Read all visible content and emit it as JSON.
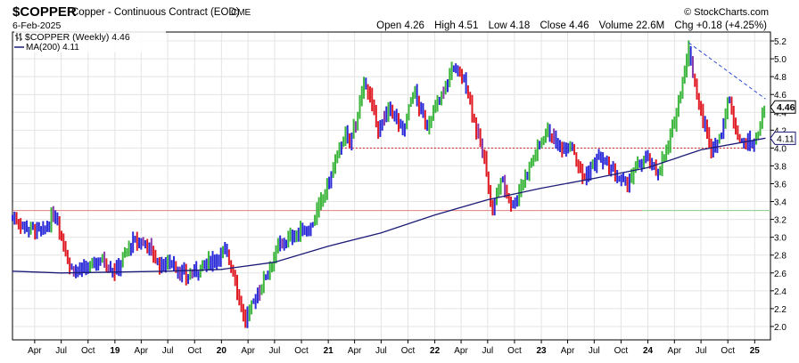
{
  "header": {
    "symbol": "$COPPER",
    "full_name": "Copper - Continuous Contract (EOD)",
    "exchange": "CME",
    "date": "6-Feb-2025",
    "attribution": "© StockCharts.com",
    "open_label": "Open",
    "open_value": "4.26",
    "high_label": "High",
    "high_value": "4.51",
    "low_label": "Low",
    "low_value": "4.18",
    "close_label": "Close",
    "close_value": "4.46",
    "volume_label": "Volume",
    "volume_value": "22.6M",
    "chg_label": "Chg",
    "chg_value": "+0.18 (+4.25%)"
  },
  "legend": {
    "series_label": "$COPPER (Weekly) 4.46",
    "ma_label": "MA(200) 4.11"
  },
  "badges": {
    "last_price": "4.46",
    "ma_value": "4.11"
  },
  "colors": {
    "up": "#3cb63c",
    "down": "#e01b24",
    "flat": "#2b2bd9",
    "other": "#8a3aa8",
    "ma": "#1a1a78",
    "resistance": "#2e4bd6",
    "support": "#c01818",
    "horizontal_line": "#8ac98a",
    "horizontal_line_red": "#e08080"
  },
  "chart_data": {
    "type": "bar",
    "title": "$COPPER (Weekly)",
    "xlabel": "",
    "ylabel": "",
    "ylim": [
      1.85,
      5.3
    ],
    "y_ticks": [
      "2.0",
      "2.2",
      "2.4",
      "2.6",
      "2.8",
      "3.0",
      "3.2",
      "3.4",
      "3.6",
      "3.8",
      "4.0",
      "4.2",
      "4.4",
      "4.6",
      "4.8",
      "5.0",
      "5.2"
    ],
    "x_ticks": [
      {
        "label": "Apr",
        "date": "2018-04"
      },
      {
        "label": "Jul",
        "date": "2018-07"
      },
      {
        "label": "Oct",
        "date": "2018-10"
      },
      {
        "label": "19",
        "date": "2019-01"
      },
      {
        "label": "Apr",
        "date": "2019-04"
      },
      {
        "label": "Jul",
        "date": "2019-07"
      },
      {
        "label": "Oct",
        "date": "2019-10"
      },
      {
        "label": "20",
        "date": "2020-01"
      },
      {
        "label": "Apr",
        "date": "2020-04"
      },
      {
        "label": "Jul",
        "date": "2020-07"
      },
      {
        "label": "Oct",
        "date": "2020-10"
      },
      {
        "label": "21",
        "date": "2021-01"
      },
      {
        "label": "Apr",
        "date": "2021-04"
      },
      {
        "label": "Jul",
        "date": "2021-07"
      },
      {
        "label": "Oct",
        "date": "2021-10"
      },
      {
        "label": "22",
        "date": "2022-01"
      },
      {
        "label": "Apr",
        "date": "2022-04"
      },
      {
        "label": "Jul",
        "date": "2022-07"
      },
      {
        "label": "Oct",
        "date": "2022-10"
      },
      {
        "label": "23",
        "date": "2023-01"
      },
      {
        "label": "Apr",
        "date": "2023-04"
      },
      {
        "label": "Jul",
        "date": "2023-07"
      },
      {
        "label": "Oct",
        "date": "2023-10"
      },
      {
        "label": "24",
        "date": "2024-01"
      },
      {
        "label": "Apr",
        "date": "2024-04"
      },
      {
        "label": "Jul",
        "date": "2024-07"
      },
      {
        "label": "Oct",
        "date": "2024-10"
      },
      {
        "label": "25",
        "date": "2025-01"
      }
    ],
    "x_range": [
      "2018-01-15",
      "2025-02-24"
    ],
    "price_path": [
      {
        "date": "2018-01-15",
        "value": 3.22
      },
      {
        "date": "2018-03-01",
        "value": 3.12
      },
      {
        "date": "2018-05-01",
        "value": 3.05
      },
      {
        "date": "2018-06-10",
        "value": 3.28
      },
      {
        "date": "2018-08-01",
        "value": 2.65
      },
      {
        "date": "2018-09-15",
        "value": 2.62
      },
      {
        "date": "2018-11-15",
        "value": 2.76
      },
      {
        "date": "2019-01-01",
        "value": 2.62
      },
      {
        "date": "2019-03-01",
        "value": 2.94
      },
      {
        "date": "2019-04-20",
        "value": 2.94
      },
      {
        "date": "2019-06-01",
        "value": 2.68
      },
      {
        "date": "2019-07-10",
        "value": 2.73
      },
      {
        "date": "2019-09-01",
        "value": 2.55
      },
      {
        "date": "2019-11-01",
        "value": 2.68
      },
      {
        "date": "2020-01-15",
        "value": 2.85
      },
      {
        "date": "2020-02-15",
        "value": 2.56
      },
      {
        "date": "2020-03-20",
        "value": 2.05
      },
      {
        "date": "2020-05-01",
        "value": 2.35
      },
      {
        "date": "2020-07-15",
        "value": 2.9
      },
      {
        "date": "2020-09-15",
        "value": 3.05
      },
      {
        "date": "2020-11-01",
        "value": 3.1
      },
      {
        "date": "2021-01-01",
        "value": 3.6
      },
      {
        "date": "2021-02-25",
        "value": 4.15
      },
      {
        "date": "2021-03-15",
        "value": 4.05
      },
      {
        "date": "2021-05-10",
        "value": 4.75
      },
      {
        "date": "2021-06-20",
        "value": 4.2
      },
      {
        "date": "2021-08-01",
        "value": 4.45
      },
      {
        "date": "2021-09-15",
        "value": 4.18
      },
      {
        "date": "2021-10-20",
        "value": 4.65
      },
      {
        "date": "2021-12-01",
        "value": 4.25
      },
      {
        "date": "2022-01-20",
        "value": 4.55
      },
      {
        "date": "2022-03-05",
        "value": 4.92
      },
      {
        "date": "2022-04-20",
        "value": 4.7
      },
      {
        "date": "2022-05-20",
        "value": 4.25
      },
      {
        "date": "2022-06-25",
        "value": 3.8
      },
      {
        "date": "2022-07-15",
        "value": 3.25
      },
      {
        "date": "2022-08-15",
        "value": 3.65
      },
      {
        "date": "2022-09-25",
        "value": 3.35
      },
      {
        "date": "2022-11-15",
        "value": 3.75
      },
      {
        "date": "2023-01-20",
        "value": 4.22
      },
      {
        "date": "2023-03-01",
        "value": 4.0
      },
      {
        "date": "2023-04-15",
        "value": 4.05
      },
      {
        "date": "2023-05-25",
        "value": 3.65
      },
      {
        "date": "2023-07-15",
        "value": 3.9
      },
      {
        "date": "2023-10-15",
        "value": 3.58
      },
      {
        "date": "2023-12-20",
        "value": 3.9
      },
      {
        "date": "2024-02-01",
        "value": 3.72
      },
      {
        "date": "2024-03-15",
        "value": 4.05
      },
      {
        "date": "2024-05-20",
        "value": 5.1
      },
      {
        "date": "2024-06-25",
        "value": 4.45
      },
      {
        "date": "2024-08-05",
        "value": 4.0
      },
      {
        "date": "2024-09-05",
        "value": 4.1
      },
      {
        "date": "2024-10-01",
        "value": 4.55
      },
      {
        "date": "2024-11-15",
        "value": 4.05
      },
      {
        "date": "2024-12-31",
        "value": 4.05
      },
      {
        "date": "2025-02-07",
        "value": 4.46
      }
    ],
    "ma200_path": [
      {
        "date": "2018-01-15",
        "value": 2.62
      },
      {
        "date": "2018-07-01",
        "value": 2.6
      },
      {
        "date": "2019-01-01",
        "value": 2.61
      },
      {
        "date": "2019-07-01",
        "value": 2.62
      },
      {
        "date": "2020-01-01",
        "value": 2.64
      },
      {
        "date": "2020-07-01",
        "value": 2.72
      },
      {
        "date": "2021-01-01",
        "value": 2.9
      },
      {
        "date": "2021-07-01",
        "value": 3.05
      },
      {
        "date": "2022-01-01",
        "value": 3.25
      },
      {
        "date": "2022-07-01",
        "value": 3.42
      },
      {
        "date": "2023-01-01",
        "value": 3.55
      },
      {
        "date": "2023-07-01",
        "value": 3.66
      },
      {
        "date": "2024-01-01",
        "value": 3.78
      },
      {
        "date": "2024-07-01",
        "value": 3.98
      },
      {
        "date": "2025-02-07",
        "value": 4.11
      }
    ],
    "horizontal_line": 3.3,
    "support_line": {
      "value": 4.0,
      "from": "2021-02-15",
      "to": "2025-01-01"
    },
    "resistance_line": {
      "from": {
        "date": "2024-05-20",
        "value": 5.18
      },
      "to": {
        "date": "2025-02-07",
        "value": 4.55
      }
    },
    "grid": true,
    "legend_position": "top-left"
  }
}
